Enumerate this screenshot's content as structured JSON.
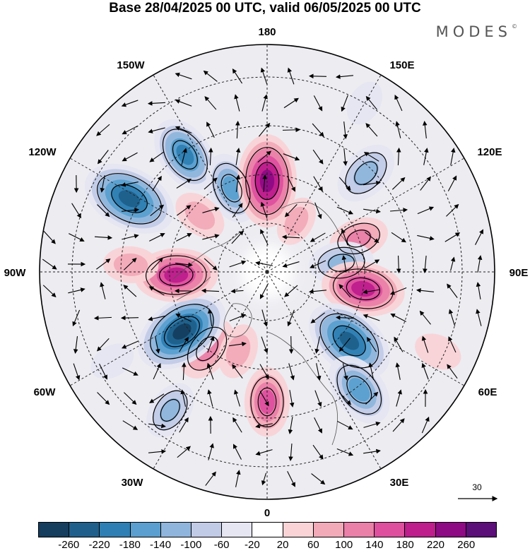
{
  "title": "Base 28/04/2025 00 UTC, valid 06/05/2025 00 UTC",
  "brand": "MODES",
  "brand_mark": "©",
  "longitude_labels": {
    "deg180": "180",
    "w150": "150W",
    "e150": "150E",
    "w120": "120W",
    "e120": "120E",
    "w90": "90W",
    "e90": "90E",
    "w60": "60W",
    "e60": "60E",
    "w30": "30W",
    "e30": "30E",
    "deg0": "0"
  },
  "reference_vector_label": "30",
  "colorbar": {
    "colors": [
      "#143d5e",
      "#1f5f8b",
      "#2e7fb3",
      "#5a9fcf",
      "#8fb5dc",
      "#c2cbe6",
      "#e6e6f2",
      "#ffffff",
      "#f9d3d6",
      "#f2aab8",
      "#ea7fa8",
      "#de4f9e",
      "#bd1e8c",
      "#8e0a85",
      "#5c0f78"
    ],
    "tick_labels": [
      "-260",
      "-220",
      "-180",
      "-140",
      "-100",
      "-60",
      "-20",
      "20",
      "60",
      "100",
      "140",
      "180",
      "220",
      "260"
    ]
  },
  "anomaly_cells": [
    {
      "lon": -145,
      "lat": 46,
      "v": -180
    },
    {
      "lon": -157,
      "lat": 62,
      "v": -150
    },
    {
      "lon": 180,
      "lat": 62,
      "v": 240
    },
    {
      "lon": 135,
      "lat": 47,
      "v": -130
    },
    {
      "lon": 150,
      "lat": 72,
      "v": 60
    },
    {
      "lon": 110,
      "lat": 60,
      "v": 100
    },
    {
      "lon": 97,
      "lat": 67,
      "v": -120
    },
    {
      "lon": 80,
      "lat": 60,
      "v": 200
    },
    {
      "lon": 50,
      "lat": 57,
      "v": -240
    },
    {
      "lon": 38,
      "lat": 44,
      "v": -170
    },
    {
      "lon": 0,
      "lat": 50,
      "v": 140
    },
    {
      "lon": -35,
      "lat": 38,
      "v": -100
    },
    {
      "lon": -38,
      "lat": 60,
      "v": 130
    },
    {
      "lon": -20,
      "lat": 64,
      "v": 80
    },
    {
      "lon": -55,
      "lat": 58,
      "v": -260
    },
    {
      "lon": -88,
      "lat": 62,
      "v": 200
    },
    {
      "lon": -93,
      "lat": 48,
      "v": 80
    },
    {
      "lon": -118,
      "lat": 42,
      "v": -250
    },
    {
      "lon": -130,
      "lat": 63,
      "v": 80
    },
    {
      "lon": 150,
      "lat": 30,
      "v": -40
    },
    {
      "lon": 65,
      "lat": 32,
      "v": 50
    },
    {
      "lon": -60,
      "lat": 35,
      "v": -40
    }
  ]
}
